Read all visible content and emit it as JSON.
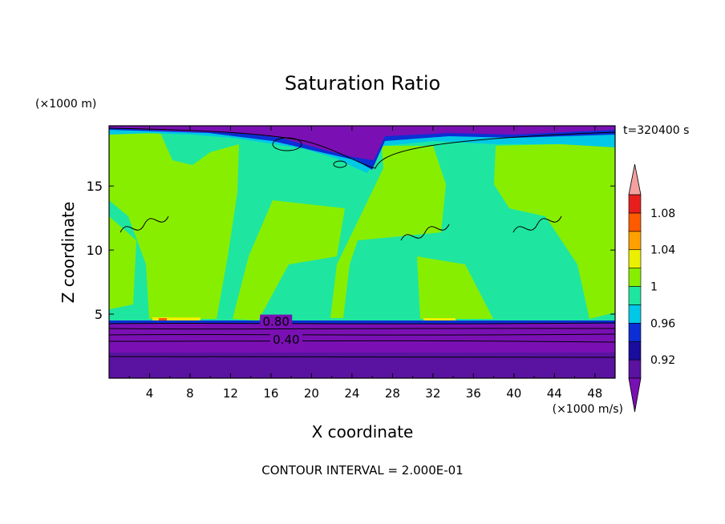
{
  "chart_data": {
    "type": "heatmap",
    "title": "Saturation Ratio",
    "xlabel": "X coordinate",
    "ylabel": "Z coordinate",
    "x_unit": "(×1000 m/s)",
    "y_unit": "(×1000 m)",
    "time_label": "t=320400 s",
    "footer": "CONTOUR INTERVAL = 2.000E-01",
    "xlim": [
      0,
      50
    ],
    "ylim": [
      0,
      19.7
    ],
    "x_ticks": [
      4,
      8,
      12,
      16,
      20,
      24,
      28,
      32,
      36,
      40,
      44,
      48
    ],
    "y_ticks": [
      5,
      10,
      15
    ],
    "contour_labels": [
      {
        "x": 16.5,
        "y": 4.4,
        "text": "0.80"
      },
      {
        "x": 17.5,
        "y": 3.0,
        "text": "0.40"
      }
    ],
    "colorbar": {
      "levels": [
        0.9,
        0.92,
        0.94,
        0.96,
        0.98,
        1.0,
        1.02,
        1.04,
        1.06,
        1.08,
        1.1
      ],
      "tick_labels": [
        "0.92",
        "0.96",
        "1",
        "1.04",
        "1.08"
      ],
      "tick_values": [
        0.92,
        0.96,
        1.0,
        1.04,
        1.08
      ],
      "colors": [
        "#5a12a0",
        "#1a0c9c",
        "#0b2fd4",
        "#00c8e6",
        "#1ee6a0",
        "#88ee00",
        "#eaf000",
        "#ffa000",
        "#ff5a00",
        "#e81e1e"
      ],
      "under_color": "#7a10b4",
      "over_color": "#f4a0a0"
    }
  }
}
